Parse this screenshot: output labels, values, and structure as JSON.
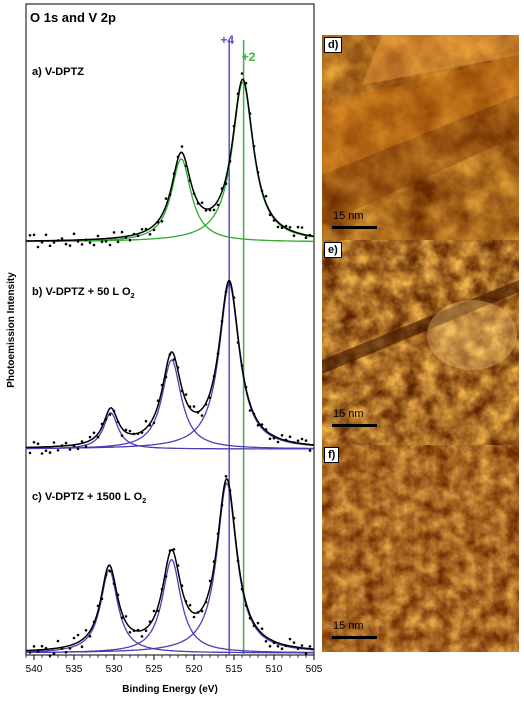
{
  "chart_data": {
    "type": "line",
    "title": "O 1s and V 2p",
    "xlabel": "Binding Energy (eV)",
    "ylabel": "Photoemission Intensity",
    "xlim": [
      541,
      505
    ],
    "x_ticks": [
      540,
      535,
      530,
      525,
      520,
      515,
      510,
      505
    ],
    "reference_lines": [
      {
        "label": "+4",
        "x": 515.6,
        "color": "#5b4ed0"
      },
      {
        "label": "+2",
        "x": 513.8,
        "color": "#3db43d"
      }
    ],
    "panels": [
      {
        "label_main": "a) V-DPTZ",
        "label_sub": "",
        "component_color": "#2eaa2e",
        "peaks": [
          {
            "center": 513.9,
            "height": 1.0,
            "width": 1.6
          },
          {
            "center": 521.6,
            "height": 0.52,
            "width": 1.5
          }
        ]
      },
      {
        "label_main": "b) V-DPTZ + 50 L O",
        "label_sub": "2",
        "component_color": "#4a3fb8",
        "peaks": [
          {
            "center": 515.6,
            "height": 1.0,
            "width": 1.55
          },
          {
            "center": 522.8,
            "height": 0.54,
            "width": 1.45
          },
          {
            "center": 530.4,
            "height": 0.22,
            "width": 1.1
          }
        ]
      },
      {
        "label_main": "c) V-DPTZ + 1500 L O",
        "label_sub": "2",
        "component_color": "#4a3fb8",
        "peaks": [
          {
            "center": 515.9,
            "height": 1.0,
            "width": 1.5
          },
          {
            "center": 522.8,
            "height": 0.55,
            "width": 1.4
          },
          {
            "center": 530.6,
            "height": 0.49,
            "width": 1.3
          }
        ]
      }
    ]
  },
  "stm_images": [
    {
      "label": "d)",
      "scale_bar": "15 nm"
    },
    {
      "label": "e)",
      "scale_bar": "15 nm"
    },
    {
      "label": "f)",
      "scale_bar": "15 nm"
    }
  ]
}
